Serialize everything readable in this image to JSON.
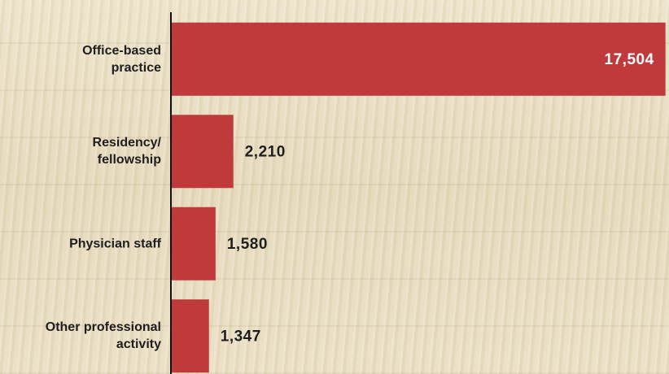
{
  "chart_data": {
    "type": "bar",
    "orientation": "horizontal",
    "categories": [
      "Office-based practice",
      "Residency/ fellowship",
      "Physician staff",
      "Other professional activity"
    ],
    "values": [
      17504,
      2210,
      1580,
      1347
    ],
    "value_labels": [
      "17,504",
      "2,210",
      "1,580",
      "1,347"
    ],
    "color": "#c0393b",
    "xlim": [
      0,
      17600
    ]
  }
}
